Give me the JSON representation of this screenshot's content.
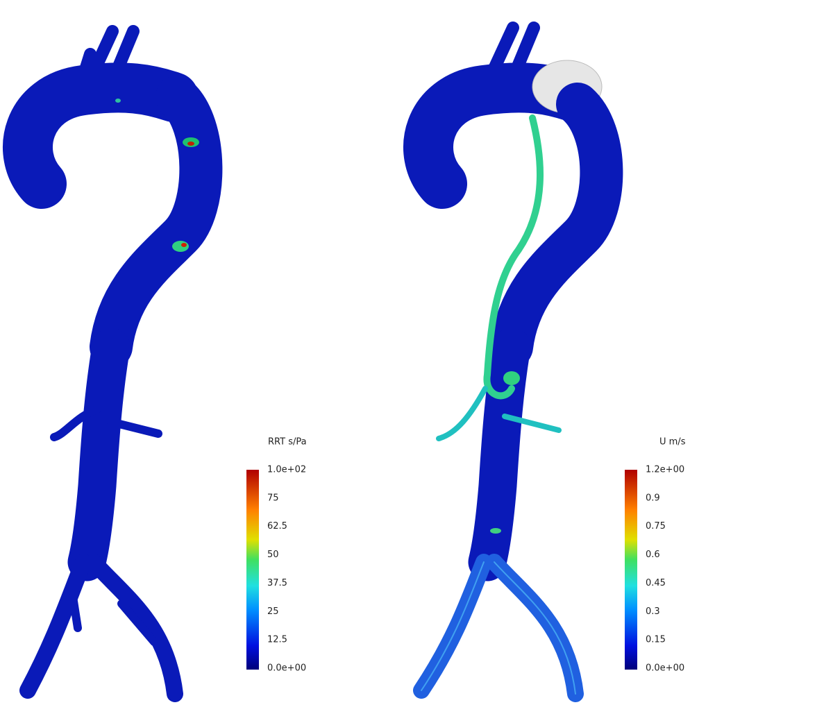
{
  "panels": [
    {
      "colorbar": {
        "title": "RRT s/Pa",
        "ticks": [
          "1.0e+02",
          "75",
          "62.5",
          "50",
          "37.5",
          "25",
          "12.5",
          "0.0e+00"
        ]
      }
    },
    {
      "colorbar": {
        "title": "U m/s",
        "ticks": [
          "1.2e+00",
          "0.9",
          "0.75",
          "0.6",
          "0.45",
          "0.3",
          "0.15",
          "0.0e+00"
        ]
      }
    }
  ]
}
